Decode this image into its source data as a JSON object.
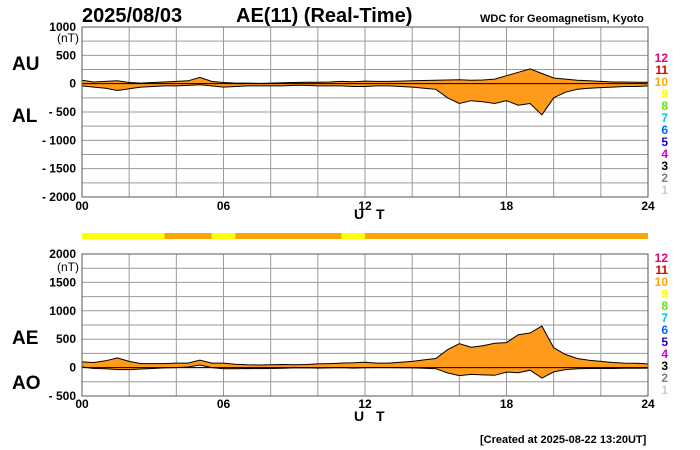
{
  "header": {
    "date": "2025/08/03",
    "title": "AE(11) (Real-Time)",
    "credit": "WDC for Geomagnetism, Kyoto"
  },
  "footer": {
    "created": "[Created at 2025-08-22 13:20UT]"
  },
  "colors": {
    "orange": "#ff9a1a",
    "yellow": "#ffff33",
    "grid": "#9a9a9a",
    "legend": {
      "12": "#e8007a",
      "11": "#e00000",
      "10": "#ffa500",
      "9": "#ffff00",
      "8": "#66dd22",
      "7": "#00cccc",
      "6": "#0066ff",
      "5": "#2200cc",
      "4": "#cc00cc",
      "3": "#000000",
      "2": "#808080",
      "1": "#cccccc"
    }
  },
  "legend_values": [
    "12",
    "11",
    "10",
    "9",
    "8",
    "7",
    "6",
    "5",
    "4",
    "3",
    "2",
    "1"
  ],
  "station_bar": [
    {
      "start": 0,
      "end": 3.5,
      "stations": 9
    },
    {
      "start": 3.5,
      "end": 5.5,
      "stations": 10
    },
    {
      "start": 5.5,
      "end": 6.5,
      "stations": 9
    },
    {
      "start": 6.5,
      "end": 11,
      "stations": 10
    },
    {
      "start": 11,
      "end": 12,
      "stations": 9
    },
    {
      "start": 12,
      "end": 24,
      "stations": 10
    }
  ],
  "chart_data": [
    {
      "type": "area",
      "panel": "AU/AL",
      "label_upper": "AU",
      "label_lower": "AL",
      "ylabel": "(nT)",
      "xlabel": "U T",
      "ylim": [
        -2000,
        1000
      ],
      "yticks": [
        "1000",
        "500",
        "0",
        "- 500",
        "- 1000",
        "- 1500",
        "- 2000"
      ],
      "ytick_values": [
        1000,
        500,
        0,
        -500,
        -1000,
        -1500,
        -2000
      ],
      "xlim": [
        0,
        24
      ],
      "xticks": [
        "00",
        "06",
        "12",
        "18",
        "24"
      ],
      "xtick_values": [
        0,
        6,
        12,
        18,
        24
      ],
      "grid": true,
      "x": [
        0,
        0.5,
        1,
        1.5,
        2,
        2.5,
        3,
        3.5,
        4,
        4.5,
        5,
        5.5,
        6,
        6.5,
        7,
        7.5,
        8,
        8.5,
        9,
        9.5,
        10,
        10.5,
        11,
        11.5,
        12,
        12.5,
        13,
        13.5,
        14,
        14.5,
        15,
        15.5,
        16,
        16.5,
        17,
        17.5,
        18,
        18.5,
        19,
        19.5,
        20,
        20.5,
        21,
        21.5,
        22,
        22.5,
        23,
        23.5,
        24
      ],
      "series": [
        {
          "name": "AU",
          "values": [
            60,
            30,
            40,
            50,
            20,
            10,
            20,
            30,
            40,
            50,
            110,
            40,
            20,
            10,
            10,
            5,
            10,
            15,
            20,
            25,
            25,
            30,
            40,
            35,
            45,
            40,
            40,
            45,
            50,
            55,
            60,
            65,
            70,
            60,
            65,
            80,
            140,
            200,
            260,
            180,
            100,
            80,
            60,
            50,
            40,
            30,
            30,
            25,
            25
          ]
        },
        {
          "name": "AL",
          "values": [
            -40,
            -60,
            -80,
            -120,
            -90,
            -60,
            -50,
            -40,
            -40,
            -30,
            -20,
            -40,
            -60,
            -50,
            -40,
            -40,
            -40,
            -40,
            -30,
            -30,
            -40,
            -40,
            -40,
            -50,
            -50,
            -40,
            -40,
            -50,
            -60,
            -80,
            -100,
            -250,
            -350,
            -300,
            -320,
            -350,
            -300,
            -380,
            -350,
            -550,
            -250,
            -150,
            -100,
            -80,
            -70,
            -60,
            -50,
            -50,
            -40
          ]
        }
      ]
    },
    {
      "type": "area",
      "panel": "AE/AO",
      "label_upper": "AE",
      "label_lower": "AO",
      "ylabel": "(nT)",
      "xlabel": "U T",
      "ylim": [
        -500,
        2000
      ],
      "yticks": [
        "2000",
        "1500",
        "1000",
        "500",
        "0",
        "- 500"
      ],
      "ytick_values": [
        2000,
        1500,
        1000,
        500,
        0,
        -500
      ],
      "xlim": [
        0,
        24
      ],
      "xticks": [
        "00",
        "06",
        "12",
        "18",
        "24"
      ],
      "xtick_values": [
        0,
        6,
        12,
        18,
        24
      ],
      "grid": true,
      "x": [
        0,
        0.5,
        1,
        1.5,
        2,
        2.5,
        3,
        3.5,
        4,
        4.5,
        5,
        5.5,
        6,
        6.5,
        7,
        7.5,
        8,
        8.5,
        9,
        9.5,
        10,
        10.5,
        11,
        11.5,
        12,
        12.5,
        13,
        13.5,
        14,
        14.5,
        15,
        15.5,
        16,
        16.5,
        17,
        17.5,
        18,
        18.5,
        19,
        19.5,
        20,
        20.5,
        21,
        21.5,
        22,
        22.5,
        23,
        23.5,
        24
      ],
      "series": [
        {
          "name": "AE",
          "values": [
            100,
            90,
            120,
            170,
            110,
            70,
            70,
            70,
            80,
            80,
            130,
            80,
            80,
            60,
            50,
            45,
            50,
            55,
            50,
            55,
            65,
            70,
            80,
            85,
            95,
            80,
            80,
            95,
            110,
            135,
            160,
            315,
            420,
            360,
            385,
            430,
            440,
            580,
            610,
            730,
            350,
            230,
            160,
            130,
            110,
            90,
            80,
            75,
            65
          ]
        },
        {
          "name": "AO",
          "values": [
            10,
            -15,
            -20,
            -35,
            -35,
            -25,
            -15,
            -5,
            0,
            10,
            45,
            0,
            -20,
            -20,
            -15,
            -18,
            -15,
            -12,
            -5,
            -3,
            -8,
            -5,
            0,
            -8,
            -3,
            0,
            0,
            -3,
            -5,
            -13,
            -20,
            -93,
            -140,
            -120,
            -128,
            -135,
            -80,
            -90,
            -45,
            -185,
            -75,
            -35,
            -20,
            -15,
            -15,
            -15,
            -10,
            -13,
            -8
          ]
        }
      ]
    }
  ]
}
